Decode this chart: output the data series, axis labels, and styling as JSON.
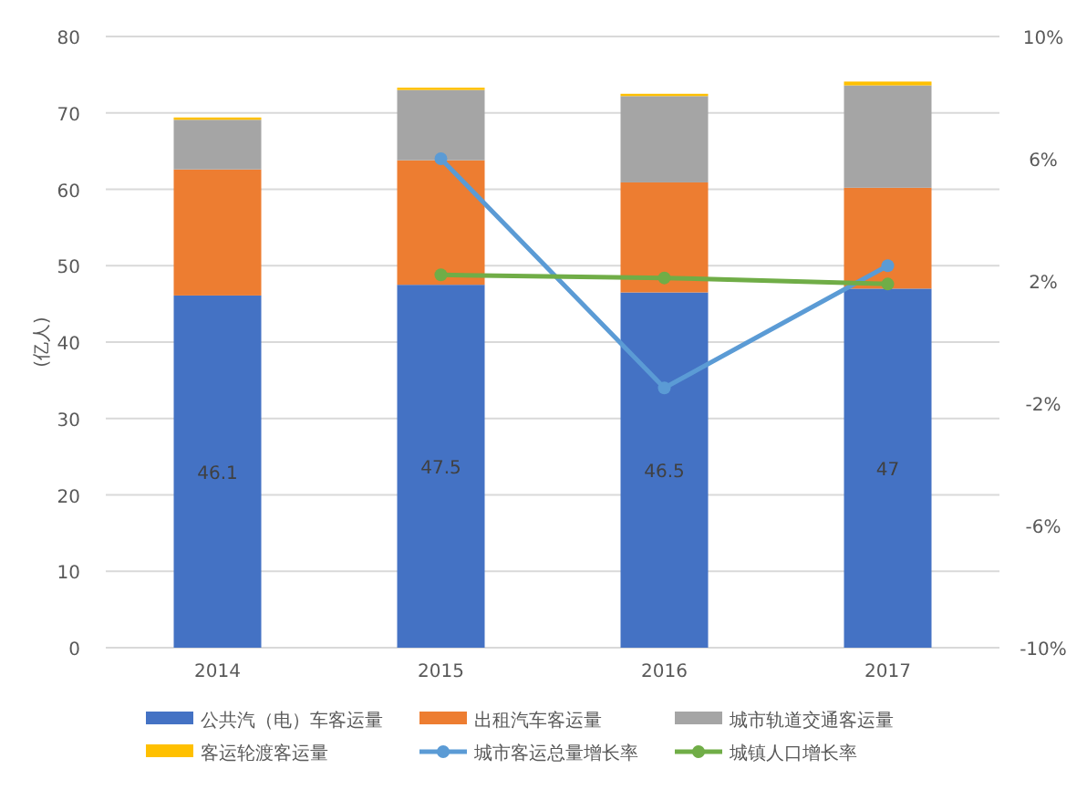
{
  "chart_data": {
    "type": "bar",
    "stacked": true,
    "ylabel": "(亿人)",
    "categories": [
      "2014",
      "2015",
      "2016",
      "2017"
    ],
    "ylim": [
      0,
      80
    ],
    "yticks": [
      0,
      10,
      20,
      30,
      40,
      50,
      60,
      70,
      80
    ],
    "y2lim": [
      -10,
      10
    ],
    "y2ticks": [
      {
        "value": 10,
        "label": "10%"
      },
      {
        "value": 6,
        "label": "6%"
      },
      {
        "value": 2,
        "label": "2%"
      },
      {
        "value": -2,
        "label": "-2%"
      },
      {
        "value": -6,
        "label": "-6%"
      },
      {
        "value": -10,
        "label": "-10%"
      }
    ],
    "grid": "y",
    "legend": "bottom",
    "marker": "circle",
    "series": [
      {
        "name": "公共汽（电）车客运量",
        "color": "#4472c4",
        "values": [
          46.1,
          47.5,
          46.5,
          47
        ],
        "value_labels": [
          "46.1",
          "47.5",
          "46.5",
          "47"
        ]
      },
      {
        "name": "出租汽车客运量",
        "color": "#ed7d31",
        "values": [
          16.5,
          16.3,
          14.4,
          13.2
        ]
      },
      {
        "name": "城市轨道交通客运量",
        "color": "#a5a5a5",
        "values": [
          6.5,
          9.2,
          11.3,
          13.4
        ]
      },
      {
        "name": "客运轮渡客运量",
        "color": "#ffc000",
        "values": [
          0.3,
          0.3,
          0.3,
          0.5
        ]
      },
      {
        "name": "城市客运总量增长率",
        "type": "line",
        "axis": "y2",
        "color": "#5b9bd5",
        "values": [
          null,
          6.0,
          -1.5,
          2.5
        ]
      },
      {
        "name": "城镇人口增长率",
        "type": "line",
        "axis": "y2",
        "color": "#70ad47",
        "values": [
          null,
          2.2,
          2.1,
          1.9
        ]
      }
    ]
  }
}
